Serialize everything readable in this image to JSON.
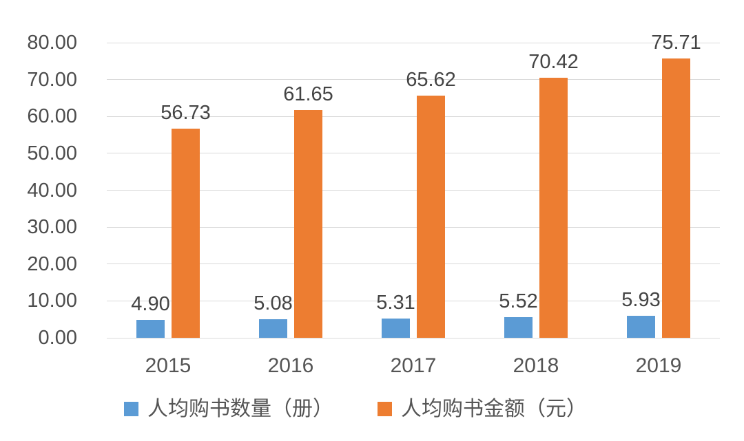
{
  "chart_data": {
    "type": "bar",
    "title": "",
    "xlabel": "",
    "ylabel": "",
    "categories": [
      "2015",
      "2016",
      "2017",
      "2018",
      "2019"
    ],
    "series": [
      {
        "name": "人均购书数量（册）",
        "color": "#5B9BD5",
        "values": [
          4.9,
          5.08,
          5.31,
          5.52,
          5.93
        ],
        "labels": [
          "4.90",
          "5.08",
          "5.31",
          "5.52",
          "5.93"
        ]
      },
      {
        "name": "人均购书金额（元）",
        "color": "#ED7D31",
        "values": [
          56.73,
          61.65,
          65.62,
          70.42,
          75.71
        ],
        "labels": [
          "56.73",
          "61.65",
          "65.62",
          "70.42",
          "75.71"
        ]
      }
    ],
    "ylim": [
      0,
      80
    ],
    "ytick_step": 10,
    "ytick_labels": [
      "0.00",
      "10.00",
      "20.00",
      "30.00",
      "40.00",
      "50.00",
      "60.00",
      "70.00",
      "80.00"
    ],
    "grid": true,
    "legend_position": "bottom"
  },
  "style": {
    "gridline_color": "#d9d9d9",
    "tick_text_color": "#4d4d4d",
    "data_label_color": "#444444",
    "background": "#ffffff"
  }
}
